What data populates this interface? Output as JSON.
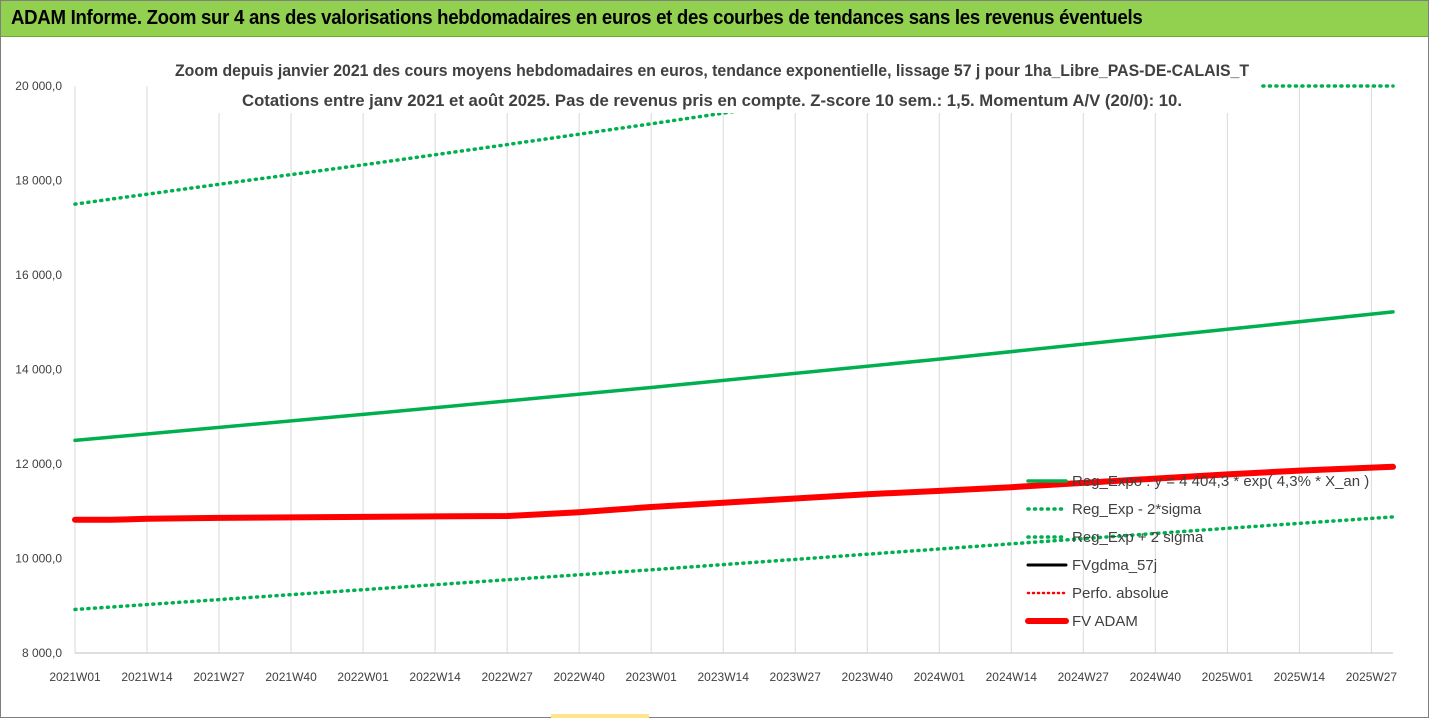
{
  "header": {
    "title": "ADAM Informe. Zoom sur 4 ans des valorisations hebdomadaires en euros et des courbes de tendances sans les revenus éventuels"
  },
  "chart_data": {
    "type": "line",
    "title": "Zoom depuis janvier 2021 des cours moyens hebdomadaires en euros, tendance exponentielle, lissage 57 j pour 1ha_Libre_PAS-DE-CALAIS_T",
    "subtitle": "Cotations entre janv 2021 et août 2025. Pas de revenus pris en compte. Z-score 10 sem.: 1,5. Momentum A/V (20/0): 10.",
    "xlabel": "",
    "ylabel": "",
    "ylim": [
      8000,
      20000
    ],
    "y_ticks": [
      "8 000,0",
      "10 000,0",
      "12 000,0",
      "14 000,0",
      "16 000,0",
      "18 000,0",
      "20 000,0"
    ],
    "x_ticks": [
      "2021W01",
      "2021W14",
      "2021W27",
      "2021W40",
      "2022W01",
      "2022W14",
      "2022W27",
      "2022W40",
      "2023W01",
      "2023W14",
      "2023W27",
      "2023W40",
      "2024W01",
      "2024W14",
      "2024W27",
      "2024W40",
      "2025W01",
      "2025W14",
      "2025W27"
    ],
    "grid": "vertical",
    "legend_position": "right",
    "series": [
      {
        "name": "Reg_Expo : y = 4 404,3 * exp( 4,3% * X_an )",
        "style": "solid",
        "color": "#00b050",
        "x_index": [
          0,
          4,
          8,
          12,
          16,
          18.3
        ],
        "values": [
          12500,
          13050,
          13620,
          14220,
          14850,
          15220
        ]
      },
      {
        "name": "Reg_Exp - 2*sigma",
        "style": "dotted",
        "color": "#00b050",
        "x_index": [
          0,
          4,
          8,
          12,
          16,
          18.3
        ],
        "values": [
          8920,
          9340,
          9760,
          10200,
          10640,
          10880
        ]
      },
      {
        "name": "Reg_Exp + 2 sigma",
        "style": "dotted",
        "color": "#00b050",
        "x_index": [
          0,
          2,
          4,
          6,
          8,
          10,
          12,
          14,
          16,
          18.3
        ],
        "values": [
          17500,
          17920,
          18330,
          18760,
          19200,
          19650,
          20000,
          20000,
          20000,
          20000
        ]
      },
      {
        "name": "FVgdma_57j",
        "style": "solid",
        "color": "#000000",
        "x_index": [],
        "values": []
      },
      {
        "name": "Perfo. absolue",
        "style": "dotted",
        "color": "#ff0000",
        "x_index": [],
        "values": []
      },
      {
        "name": "FV ADAM",
        "style": "solid-thick",
        "color": "#ff0000",
        "x_index": [
          0,
          0.5,
          1,
          2,
          3,
          4,
          5,
          6,
          7,
          8,
          9,
          10,
          11,
          12,
          13,
          14,
          15,
          16,
          17,
          18.3
        ],
        "values": [
          10820,
          10820,
          10840,
          10860,
          10870,
          10880,
          10890,
          10900,
          10980,
          11090,
          11180,
          11270,
          11360,
          11430,
          11510,
          11600,
          11690,
          11780,
          11860,
          11940
        ]
      }
    ]
  }
}
